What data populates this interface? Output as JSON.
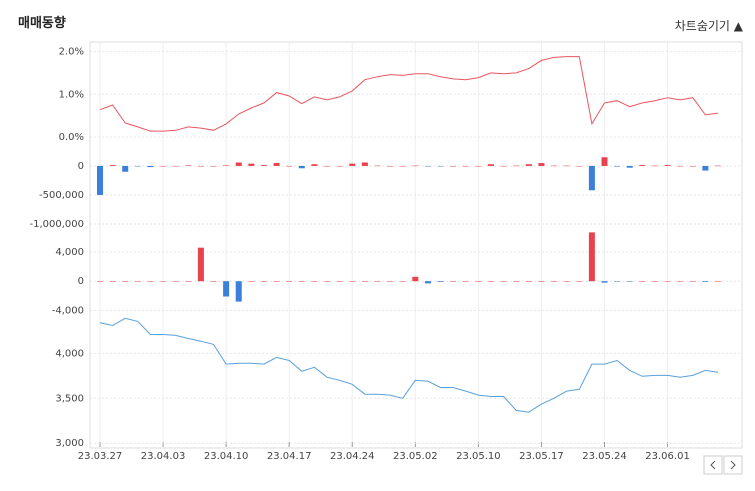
{
  "header": {
    "title": "매매동향",
    "toggle": "차트숨기기"
  },
  "chart_data": [
    {
      "type": "line",
      "color": "#e8565f",
      "ylim": [
        -0.3,
        2.15
      ],
      "yticks": [
        {
          "value": 2,
          "label": "2.0%"
        },
        {
          "value": 1,
          "label": "1.0%"
        },
        {
          "value": 0,
          "label": "0.0%"
        }
      ],
      "values": [
        0.64,
        0.75,
        0.33,
        0.24,
        0.14,
        0.14,
        0.16,
        0.24,
        0.21,
        0.16,
        0.31,
        0.54,
        0.68,
        0.8,
        1.04,
        0.96,
        0.78,
        0.94,
        0.87,
        0.94,
        1.08,
        1.34,
        1.41,
        1.46,
        1.44,
        1.48,
        1.48,
        1.41,
        1.36,
        1.34,
        1.39,
        1.5,
        1.48,
        1.5,
        1.6,
        1.79,
        1.86,
        1.88,
        1.88,
        0.31,
        0.8,
        0.85,
        0.71,
        0.8,
        0.85,
        0.92,
        0.87,
        0.92,
        0.52,
        0.56
      ]
    },
    {
      "type": "bar",
      "color": "#e8424f",
      "negative_color": "#3a7fd9",
      "ylim": [
        -1070000,
        275000
      ],
      "yticks": [
        0,
        {
          "value": -500000,
          "label": "-500,000"
        },
        {
          "value": -1000000,
          "label": "-1,000,000"
        }
      ],
      "values": [
        -500000,
        15000,
        -100000,
        -5000,
        -20000,
        0,
        0,
        10000,
        0,
        0,
        10000,
        60000,
        40000,
        15000,
        50000,
        0,
        -40000,
        30000,
        0,
        0,
        40000,
        60000,
        5000,
        0,
        0,
        5000,
        -5000,
        -5000,
        0,
        0,
        0,
        30000,
        0,
        5000,
        30000,
        50000,
        5000,
        5000,
        0,
        -420000,
        150000,
        -10000,
        -30000,
        15000,
        5000,
        15000,
        0,
        0,
        -80000,
        5000
      ]
    },
    {
      "type": "bar",
      "color": "#e8424f",
      "negative_color": "#3a7fd9",
      "ylim": [
        -5600,
        7300
      ],
      "yticks": [
        {
          "value": 4000,
          "label": "4,000"
        },
        0,
        {
          "value": -4000,
          "label": "-4,000"
        }
      ],
      "values": [
        0,
        0,
        0,
        0,
        0,
        0,
        0,
        0,
        4600,
        0,
        -2100,
        -2800,
        0,
        0,
        0,
        0,
        0,
        0,
        0,
        0,
        0,
        0,
        0,
        0,
        0,
        600,
        -300,
        -100,
        0,
        0,
        0,
        0,
        0,
        0,
        0,
        0,
        0,
        0,
        0,
        6700,
        -200,
        -50,
        -50,
        0,
        0,
        0,
        0,
        0,
        -100,
        0
      ]
    },
    {
      "type": "line",
      "color": "#5a9fdc",
      "ylim": [
        2980,
        4460
      ],
      "yticks": [
        {
          "value": 4000,
          "label": "4,000"
        },
        {
          "value": 3500,
          "label": "3,500"
        },
        {
          "value": 3000,
          "label": "3,000"
        }
      ],
      "categories": [
        "23.03.27",
        null,
        null,
        null,
        null,
        "23.04.03",
        null,
        null,
        null,
        null,
        "23.04.10",
        null,
        null,
        null,
        null,
        "23.04.17",
        null,
        null,
        null,
        null,
        "23.04.24",
        null,
        null,
        null,
        null,
        "23.05.02",
        null,
        null,
        null,
        null,
        "23.05.10",
        null,
        null,
        null,
        null,
        "23.05.17",
        null,
        null,
        null,
        null,
        "23.05.24",
        null,
        null,
        null,
        null,
        "23.06.01",
        null,
        null,
        null,
        null
      ],
      "values": [
        4340,
        4310,
        4390,
        4355,
        4210,
        4210,
        4200,
        4165,
        4135,
        4100,
        3880,
        3890,
        3890,
        3880,
        3955,
        3920,
        3800,
        3845,
        3735,
        3700,
        3655,
        3545,
        3545,
        3535,
        3500,
        3700,
        3690,
        3620,
        3620,
        3580,
        3535,
        3520,
        3520,
        3365,
        3345,
        3435,
        3500,
        3580,
        3600,
        3880,
        3880,
        3920,
        3810,
        3745,
        3755,
        3755,
        3735,
        3755,
        3810,
        3790
      ]
    }
  ]
}
